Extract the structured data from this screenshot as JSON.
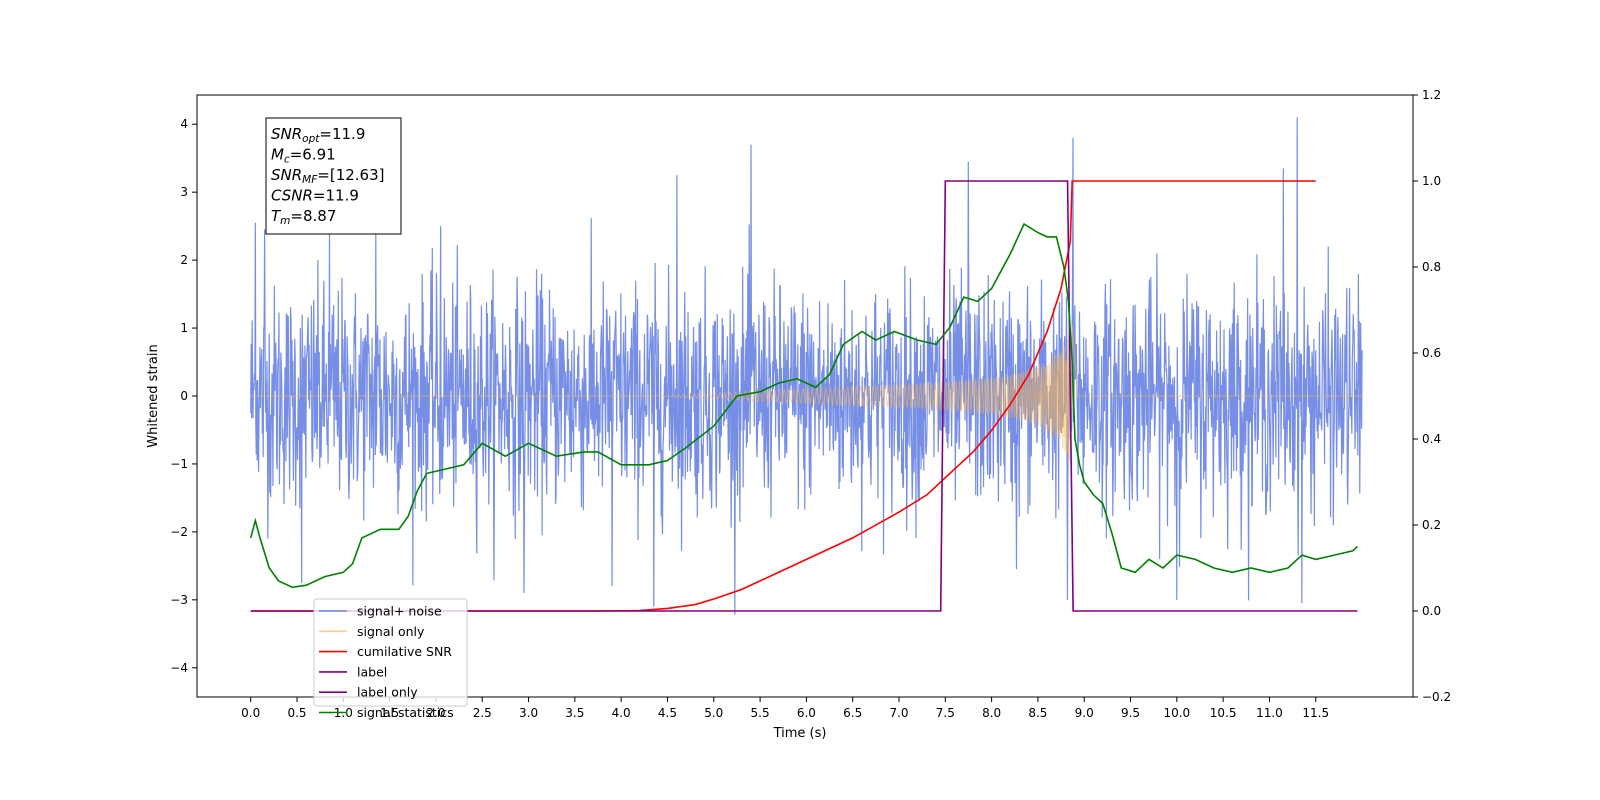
{
  "chart_data": {
    "type": "line",
    "xlabel": "Time (s)",
    "ylabel": "Whitened strain",
    "xlim": [
      -0.58,
      12.55
    ],
    "ylim": [
      -4.43,
      4.43
    ],
    "y2lim": [
      -0.2,
      1.2
    ],
    "x_ticks": [
      "0.0",
      "0.5",
      "1.0",
      "1.5",
      "2.0",
      "2.5",
      "3.0",
      "3.5",
      "4.0",
      "4.5",
      "5.0",
      "5.5",
      "6.0",
      "6.5",
      "7.0",
      "7.5",
      "8.0",
      "8.5",
      "9.0",
      "9.5",
      "10.0",
      "10.5",
      "11.0",
      "11.5"
    ],
    "y_ticks": [
      "-4",
      "-3",
      "-2",
      "-1",
      "0",
      "1",
      "2",
      "3",
      "4"
    ],
    "y2_ticks": [
      "-0.2",
      "0.0",
      "0.2",
      "0.4",
      "0.6",
      "0.8",
      "1.0",
      "1.2"
    ],
    "grid": false,
    "legend_position": "lower-left",
    "annotation": [
      {
        "main": "SNR",
        "sub": "opt",
        "rest": "=11.9"
      },
      {
        "main": "M",
        "sub": "c",
        "rest": "=6.91"
      },
      {
        "main": "SNR",
        "sub": "MF",
        "rest": "=[12.63]"
      },
      {
        "main": "CSNR",
        "sub": "",
        "rest": "=11.9"
      },
      {
        "main": "T",
        "sub": "m",
        "rest": "=8.87"
      }
    ],
    "legend": [
      {
        "label": "signal+ noise",
        "color": "#6f88e4"
      },
      {
        "label": "signal only",
        "color": "#ffb84d"
      },
      {
        "label": "cumilative SNR",
        "color": "#ff0000"
      },
      {
        "label": "label",
        "color": "#800080"
      },
      {
        "label": "label only",
        "color": "#800080"
      },
      {
        "label": "signal statistics",
        "color": "#008000"
      }
    ],
    "series": [
      {
        "name": "signal+ noise",
        "axis": "left",
        "color": "#6f88e4",
        "t_range": [
          0.0,
          12.0
        ],
        "noise_sigma": 0.8,
        "spikes": [
          [
            0.05,
            2.55
          ],
          [
            0.15,
            2.45
          ],
          [
            0.55,
            -2.75
          ],
          [
            0.85,
            2.45
          ],
          [
            1.35,
            2.45
          ],
          [
            2.05,
            2.5
          ],
          [
            2.95,
            -2.9
          ],
          [
            3.9,
            -2.8
          ],
          [
            4.35,
            -3.1
          ],
          [
            4.6,
            3.25
          ],
          [
            5.4,
            3.7
          ],
          [
            7.75,
            3.45
          ],
          [
            8.27,
            -2.55
          ],
          [
            8.82,
            -3.0
          ],
          [
            8.88,
            3.8
          ],
          [
            10.0,
            -3.0
          ],
          [
            11.15,
            3.35
          ],
          [
            11.3,
            4.1
          ],
          [
            11.35,
            -3.05
          ]
        ]
      },
      {
        "name": "signal only",
        "axis": "left",
        "color": "#ffb84d",
        "t_range": [
          0.0,
          12.0
        ],
        "merger_time": 8.87,
        "envelope": [
          [
            4.3,
            0.0
          ],
          [
            5.0,
            0.04
          ],
          [
            5.5,
            0.08
          ],
          [
            6.0,
            0.11
          ],
          [
            6.5,
            0.14
          ],
          [
            7.0,
            0.17
          ],
          [
            7.5,
            0.21
          ],
          [
            8.0,
            0.27
          ],
          [
            8.3,
            0.35
          ],
          [
            8.6,
            0.5
          ],
          [
            8.8,
            0.85
          ],
          [
            8.87,
            1.05
          ],
          [
            8.93,
            0.0
          ]
        ]
      },
      {
        "name": "cumilative SNR",
        "axis": "right",
        "color": "#ff0000",
        "x": [
          0.0,
          3.8,
          4.2,
          4.5,
          4.8,
          5.0,
          5.3,
          5.6,
          6.0,
          6.5,
          7.0,
          7.3,
          7.5,
          7.8,
          8.0,
          8.2,
          8.4,
          8.6,
          8.75,
          8.85,
          8.87,
          11.5
        ],
        "y": [
          0.0,
          0.0,
          0.001,
          0.006,
          0.015,
          0.028,
          0.05,
          0.08,
          0.12,
          0.17,
          0.23,
          0.27,
          0.31,
          0.37,
          0.42,
          0.48,
          0.55,
          0.65,
          0.75,
          0.86,
          1.0,
          1.0
        ]
      },
      {
        "name": "label",
        "axis": "right",
        "color": "#800080",
        "x": [
          0.0,
          7.45,
          7.5,
          8.82,
          8.88,
          11.95
        ],
        "y": [
          0.0,
          0.0,
          1.0,
          1.0,
          0.0,
          0.0
        ]
      },
      {
        "name": "signal statistics",
        "axis": "right",
        "color": "#008000",
        "x": [
          0.0,
          0.05,
          0.1,
          0.2,
          0.3,
          0.45,
          0.6,
          0.8,
          1.0,
          1.1,
          1.2,
          1.4,
          1.6,
          1.7,
          1.8,
          1.9,
          2.1,
          2.3,
          2.5,
          2.75,
          3.0,
          3.3,
          3.6,
          3.75,
          4.0,
          4.3,
          4.5,
          4.7,
          5.0,
          5.25,
          5.5,
          5.7,
          5.9,
          6.1,
          6.25,
          6.4,
          6.6,
          6.75,
          6.95,
          7.2,
          7.4,
          7.55,
          7.7,
          7.85,
          8.0,
          8.2,
          8.35,
          8.5,
          8.6,
          8.7,
          8.78,
          8.83,
          8.87,
          8.9,
          8.95,
          9.0,
          9.1,
          9.2,
          9.3,
          9.4,
          9.55,
          9.7,
          9.85,
          10.0,
          10.2,
          10.4,
          10.6,
          10.8,
          11.0,
          11.2,
          11.35,
          11.5,
          11.7,
          11.9,
          11.95
        ],
        "y": [
          0.17,
          0.21,
          0.17,
          0.1,
          0.07,
          0.055,
          0.06,
          0.08,
          0.09,
          0.11,
          0.17,
          0.19,
          0.19,
          0.22,
          0.28,
          0.32,
          0.33,
          0.34,
          0.39,
          0.36,
          0.39,
          0.36,
          0.37,
          0.37,
          0.34,
          0.34,
          0.35,
          0.38,
          0.43,
          0.5,
          0.51,
          0.53,
          0.54,
          0.52,
          0.55,
          0.62,
          0.65,
          0.63,
          0.65,
          0.63,
          0.62,
          0.66,
          0.73,
          0.72,
          0.75,
          0.83,
          0.9,
          0.88,
          0.87,
          0.87,
          0.8,
          0.72,
          0.58,
          0.4,
          0.34,
          0.3,
          0.27,
          0.25,
          0.18,
          0.1,
          0.09,
          0.12,
          0.1,
          0.13,
          0.12,
          0.1,
          0.09,
          0.1,
          0.09,
          0.1,
          0.13,
          0.12,
          0.13,
          0.14,
          0.15
        ]
      }
    ]
  }
}
